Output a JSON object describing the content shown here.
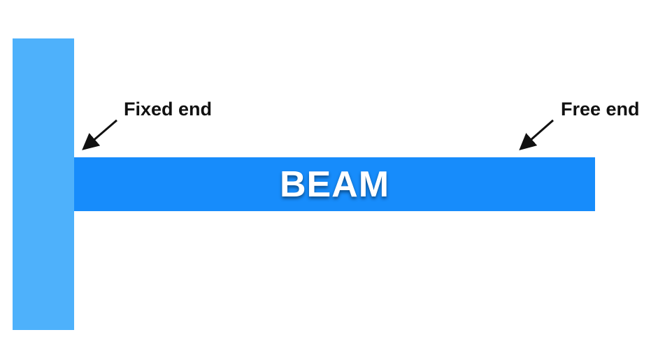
{
  "diagram": {
    "beam_label": "BEAM",
    "fixed_end_label": "Fixed end",
    "free_end_label": "Free end"
  },
  "colors": {
    "wall": "#4eb1fb",
    "beam": "#178cfb",
    "beam_text": "#ffffff",
    "callout_text": "#111111",
    "arrow": "#111111"
  }
}
